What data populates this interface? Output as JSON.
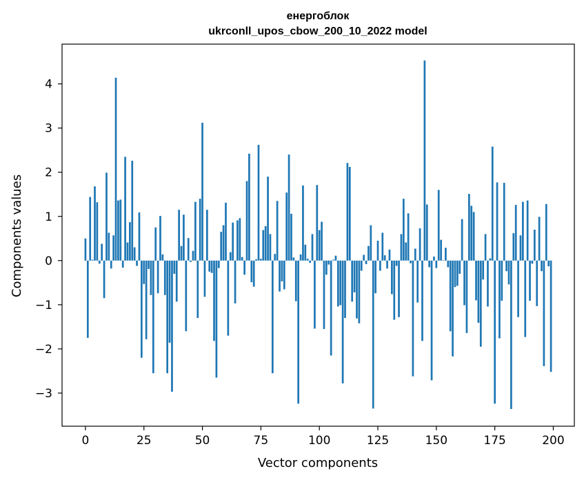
{
  "chart_data": {
    "type": "bar",
    "title": "енергоблок",
    "subtitle": "ukrconll_upos_cbow_200_10_2022 model",
    "xlabel": "Vector components",
    "ylabel": "Components values",
    "xlim": [
      -10,
      209
    ],
    "ylim": [
      -3.75,
      4.9
    ],
    "xticks": [
      0,
      25,
      50,
      75,
      100,
      125,
      150,
      175,
      200
    ],
    "yticks": [
      -3,
      -2,
      -1,
      0,
      1,
      2,
      3,
      4
    ],
    "xtick_labels": [
      "0",
      "25",
      "50",
      "75",
      "100",
      "125",
      "150",
      "175",
      "200"
    ],
    "ytick_labels": [
      "−3",
      "−2",
      "−1",
      "0",
      "1",
      "2",
      "3",
      "4"
    ],
    "grid": false,
    "bar_color": "#1f77b4",
    "values": [
      0.5,
      -1.75,
      1.44,
      0.02,
      1.68,
      1.32,
      -0.07,
      0.38,
      -0.85,
      1.99,
      0.63,
      -0.18,
      0.57,
      4.14,
      1.36,
      1.38,
      -0.16,
      2.35,
      0.41,
      0.87,
      2.26,
      0.3,
      -0.12,
      1.09,
      -2.2,
      -0.53,
      -1.78,
      -0.19,
      -0.78,
      -2.55,
      0.75,
      -0.74,
      1.01,
      0.14,
      -0.78,
      -2.55,
      -1.86,
      -2.97,
      -0.3,
      -0.93,
      1.15,
      0.33,
      1.04,
      -1.6,
      0.51,
      -0.03,
      0.22,
      1.33,
      -1.3,
      1.4,
      3.12,
      -0.82,
      1.15,
      -0.25,
      -0.28,
      -1.82,
      -2.65,
      -0.17,
      0.65,
      0.8,
      1.31,
      -1.7,
      0.19,
      0.86,
      -0.97,
      0.91,
      0.96,
      0.08,
      -0.32,
      1.8,
      2.42,
      -0.49,
      -0.59,
      0.03,
      2.62,
      0.04,
      0.69,
      0.78,
      1.9,
      0.6,
      -2.55,
      0.15,
      1.35,
      -0.7,
      -0.47,
      -0.65,
      1.54,
      2.4,
      1.06,
      0.07,
      -0.92,
      -3.24,
      0.14,
      1.7,
      0.36,
      0.04,
      -0.05,
      0.6,
      -1.54,
      1.71,
      0.69,
      0.88,
      -1.55,
      -0.32,
      -0.09,
      -2.15,
      0.02,
      0.11,
      -1.04,
      -1.01,
      -2.78,
      -1.3,
      2.21,
      2.12,
      -0.93,
      -0.72,
      -1.31,
      -1.42,
      -0.23,
      0.13,
      -0.08,
      0.33,
      0.8,
      -3.35,
      -0.74,
      0.45,
      -0.23,
      0.63,
      0.12,
      -0.18,
      0.25,
      -0.76,
      -1.34,
      -0.12,
      -1.28,
      0.6,
      1.4,
      0.41,
      1.07,
      -0.06,
      -2.62,
      0.27,
      -0.95,
      0.73,
      -1.82,
      4.53,
      1.27,
      -0.15,
      -2.71,
      0.09,
      -0.17,
      1.6,
      0.47,
      0.01,
      0.29,
      -0.15,
      -1.6,
      -2.17,
      -0.6,
      -0.57,
      -0.3,
      0.94,
      -1.01,
      -1.64,
      1.51,
      1.24,
      1.1,
      -0.9,
      -1.41,
      -1.95,
      -0.43,
      0.6,
      -1.04,
      0.05,
      2.58,
      -3.24,
      1.77,
      -1.76,
      -0.91,
      1.76,
      -0.24,
      -0.54,
      -3.36,
      0.62,
      1.26,
      -1.28,
      0.57,
      1.33,
      -1.73,
      1.36,
      -0.91,
      -0.07,
      0.7,
      -1.03,
      0.99,
      -0.24,
      -2.39,
      1.28,
      -0.13,
      -2.52
    ]
  }
}
